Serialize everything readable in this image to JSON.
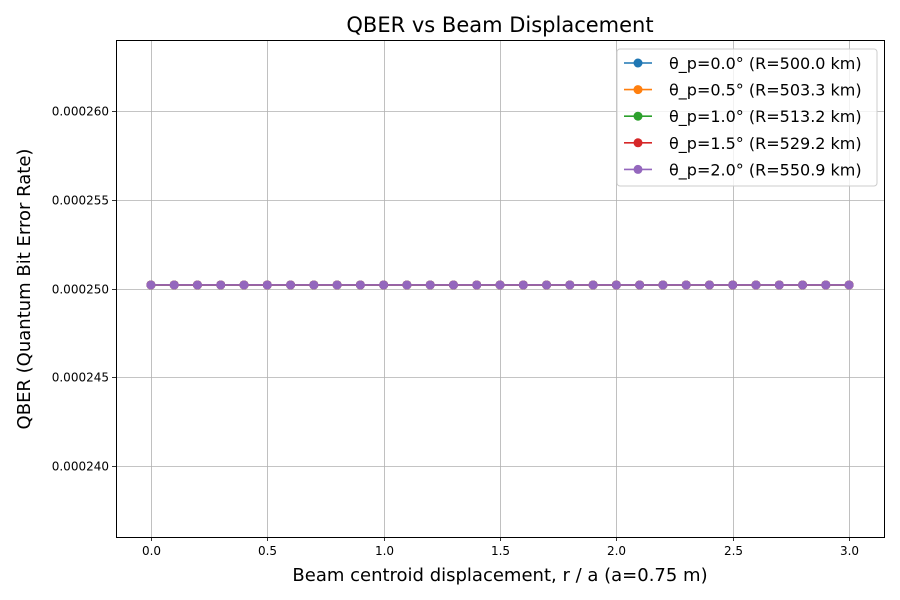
{
  "chart_data": {
    "type": "line",
    "title": "QBER vs Beam Displacement",
    "xlabel": "Beam centroid displacement,  r / a (a=0.75 m)",
    "ylabel": "QBER (Quantum Bit Error Rate)",
    "xlim": [
      -0.15,
      3.15
    ],
    "ylim": [
      0.000236,
      0.000264
    ],
    "x_ticks": [
      0.0,
      0.5,
      1.0,
      1.5,
      2.0,
      2.5,
      3.0
    ],
    "x_tick_labels": [
      "0.0",
      "0.5",
      "1.0",
      "1.5",
      "2.0",
      "2.5",
      "3.0"
    ],
    "y_ticks": [
      0.00024,
      0.000245,
      0.00025,
      0.000255,
      0.00026
    ],
    "y_tick_labels": [
      "0.000240",
      "0.000245",
      "0.000250",
      "0.000255",
      "0.000260"
    ],
    "grid": true,
    "legend_position": "top-right",
    "x": [
      0.0,
      0.1,
      0.2,
      0.3,
      0.4,
      0.5,
      0.6,
      0.7,
      0.8,
      0.9,
      1.0,
      1.1,
      1.2,
      1.3,
      1.4,
      1.5,
      1.6,
      1.7,
      1.8,
      1.9,
      2.0,
      2.1,
      2.2,
      2.3,
      2.4,
      2.5,
      2.6,
      2.7,
      2.8,
      2.9,
      3.0
    ],
    "series": [
      {
        "name": "θ_p=0.0° (R=500.0 km)",
        "color": "#1f77b4",
        "values": [
          0.0002502,
          0.0002502,
          0.0002502,
          0.0002502,
          0.0002502,
          0.0002502,
          0.0002502,
          0.0002502,
          0.0002502,
          0.0002502,
          0.0002502,
          0.0002502,
          0.0002502,
          0.0002502,
          0.0002502,
          0.0002502,
          0.0002502,
          0.0002502,
          0.0002502,
          0.0002502,
          0.0002502,
          0.0002502,
          0.0002502,
          0.0002502,
          0.0002502,
          0.0002502,
          0.0002502,
          0.0002502,
          0.0002502,
          0.0002502,
          0.0002502
        ]
      },
      {
        "name": "θ_p=0.5° (R=503.3 km)",
        "color": "#ff7f0e",
        "values": [
          0.0002502,
          0.0002502,
          0.0002502,
          0.0002502,
          0.0002502,
          0.0002502,
          0.0002502,
          0.0002502,
          0.0002502,
          0.0002502,
          0.0002502,
          0.0002502,
          0.0002502,
          0.0002502,
          0.0002502,
          0.0002502,
          0.0002502,
          0.0002502,
          0.0002502,
          0.0002502,
          0.0002502,
          0.0002502,
          0.0002502,
          0.0002502,
          0.0002502,
          0.0002502,
          0.0002502,
          0.0002502,
          0.0002502,
          0.0002502,
          0.0002502
        ]
      },
      {
        "name": "θ_p=1.0° (R=513.2 km)",
        "color": "#2ca02c",
        "values": [
          0.0002502,
          0.0002502,
          0.0002502,
          0.0002502,
          0.0002502,
          0.0002502,
          0.0002502,
          0.0002502,
          0.0002502,
          0.0002502,
          0.0002502,
          0.0002502,
          0.0002502,
          0.0002502,
          0.0002502,
          0.0002502,
          0.0002502,
          0.0002502,
          0.0002502,
          0.0002502,
          0.0002502,
          0.0002502,
          0.0002502,
          0.0002502,
          0.0002502,
          0.0002502,
          0.0002502,
          0.0002502,
          0.0002502,
          0.0002502,
          0.0002502
        ]
      },
      {
        "name": "θ_p=1.5° (R=529.2 km)",
        "color": "#d62728",
        "values": [
          0.0002502,
          0.0002502,
          0.0002502,
          0.0002502,
          0.0002502,
          0.0002502,
          0.0002502,
          0.0002502,
          0.0002502,
          0.0002502,
          0.0002502,
          0.0002502,
          0.0002502,
          0.0002502,
          0.0002502,
          0.0002502,
          0.0002502,
          0.0002502,
          0.0002502,
          0.0002502,
          0.0002502,
          0.0002502,
          0.0002502,
          0.0002502,
          0.0002502,
          0.0002502,
          0.0002502,
          0.0002502,
          0.0002502,
          0.0002502,
          0.0002502
        ]
      },
      {
        "name": "θ_p=2.0° (R=550.9 km)",
        "color": "#9467bd",
        "values": [
          0.0002502,
          0.0002502,
          0.0002502,
          0.0002502,
          0.0002502,
          0.0002502,
          0.0002502,
          0.0002502,
          0.0002502,
          0.0002502,
          0.0002502,
          0.0002502,
          0.0002502,
          0.0002502,
          0.0002502,
          0.0002502,
          0.0002502,
          0.0002502,
          0.0002502,
          0.0002502,
          0.0002502,
          0.0002502,
          0.0002502,
          0.0002502,
          0.0002502,
          0.0002502,
          0.0002502,
          0.0002502,
          0.0002502,
          0.0002502,
          0.0002502
        ]
      }
    ]
  }
}
